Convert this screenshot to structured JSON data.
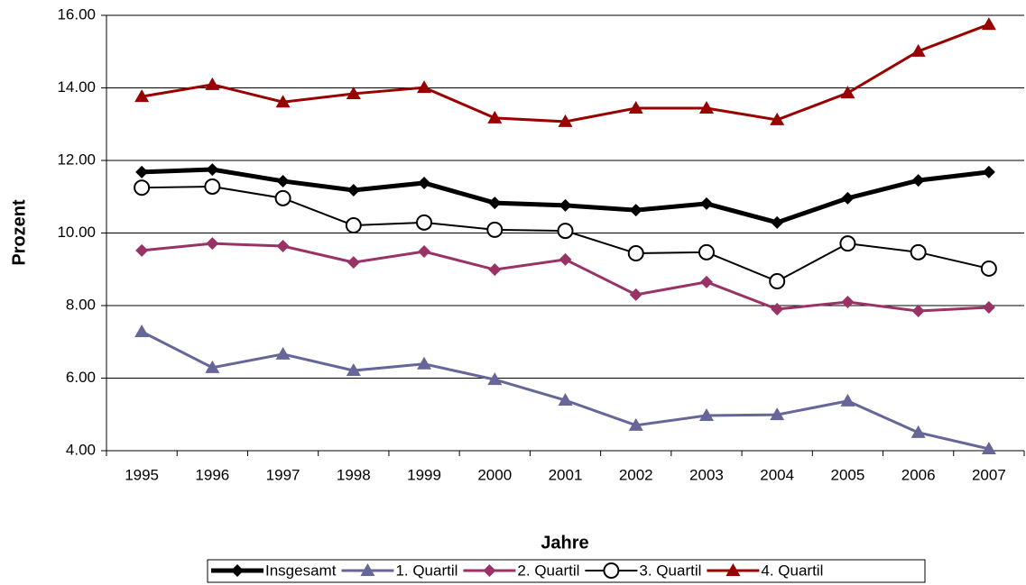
{
  "chart_data": {
    "type": "line",
    "x_label": "Jahre",
    "y_label": "Prozent",
    "categories": [
      "1995",
      "1996",
      "1997",
      "1998",
      "1999",
      "2000",
      "2001",
      "2002",
      "2003",
      "2004",
      "2005",
      "2006",
      "2007"
    ],
    "series": [
      {
        "name": "Insgesamt",
        "color": "#000000",
        "marker": "diamond",
        "line_width": 5,
        "values": [
          11.68,
          11.75,
          11.43,
          11.18,
          11.38,
          10.83,
          10.76,
          10.63,
          10.81,
          10.29,
          10.96,
          11.45,
          11.68
        ]
      },
      {
        "name": "1. Quartil",
        "color": "#666699",
        "marker": "triangle",
        "line_width": 3,
        "values": [
          7.28,
          6.29,
          6.66,
          6.21,
          6.39,
          5.96,
          5.39,
          4.7,
          4.97,
          4.99,
          5.37,
          4.5,
          4.05
        ]
      },
      {
        "name": "2. Quartil",
        "color": "#993366",
        "marker": "diamond",
        "line_width": 3,
        "values": [
          9.52,
          9.71,
          9.64,
          9.19,
          9.49,
          8.99,
          9.27,
          8.3,
          8.65,
          7.9,
          8.1,
          7.85,
          7.95
        ]
      },
      {
        "name": "3. Quartil",
        "color": "#000000",
        "marker": "circle",
        "line_width": 2,
        "values": [
          11.25,
          11.28,
          10.96,
          10.21,
          10.29,
          10.09,
          10.06,
          9.44,
          9.47,
          8.67,
          9.71,
          9.47,
          9.02
        ]
      },
      {
        "name": "4. Quartil",
        "color": "#990000",
        "marker": "triangle",
        "line_width": 3,
        "values": [
          13.76,
          14.09,
          13.61,
          13.84,
          14.01,
          13.17,
          13.07,
          13.44,
          13.44,
          13.12,
          13.86,
          15.01,
          15.75
        ]
      }
    ],
    "ylim": [
      4,
      16
    ],
    "yticks": [
      {
        "value": 4,
        "label": "4.00"
      },
      {
        "value": 6,
        "label": "6.00"
      },
      {
        "value": 8,
        "label": "8.00"
      },
      {
        "value": 10,
        "label": "10.00"
      },
      {
        "value": 12,
        "label": "12.00"
      },
      {
        "value": 14,
        "label": "14.00"
      },
      {
        "value": 16,
        "label": "16.00"
      }
    ],
    "grid": true,
    "legend": "bottom"
  }
}
